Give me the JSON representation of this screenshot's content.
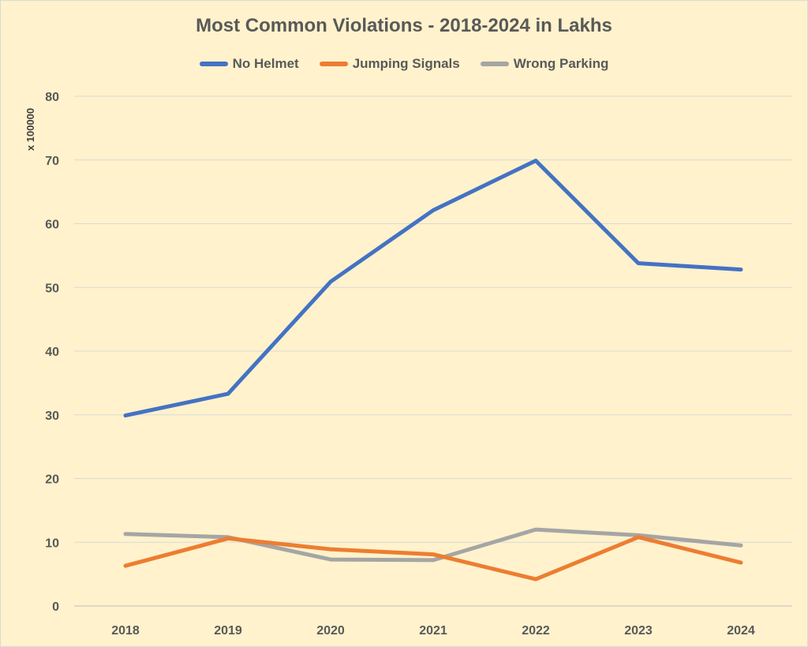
{
  "chart_data": {
    "type": "line",
    "title": "Most Common Violations - 2018-2024 in Lakhs",
    "y_unit_label": "x 100000",
    "categories": [
      "2018",
      "2019",
      "2020",
      "2021",
      "2022",
      "2023",
      "2024"
    ],
    "ylim": [
      0,
      80
    ],
    "yticks": [
      0,
      10,
      20,
      30,
      40,
      50,
      60,
      70,
      80
    ],
    "grid": true,
    "legend_position": "top",
    "series": [
      {
        "name": "No Helmet",
        "color": "#4472c4",
        "values": [
          29.9,
          33.3,
          50.9,
          62.1,
          69.9,
          53.8,
          52.8
        ]
      },
      {
        "name": "Jumping Signals",
        "color": "#ed7d31",
        "values": [
          6.3,
          10.6,
          8.9,
          8.1,
          4.2,
          10.8,
          6.8
        ]
      },
      {
        "name": "Wrong Parking",
        "color": "#a5a5a5",
        "values": [
          11.3,
          10.8,
          7.3,
          7.2,
          12.0,
          11.1,
          9.5
        ]
      }
    ]
  }
}
